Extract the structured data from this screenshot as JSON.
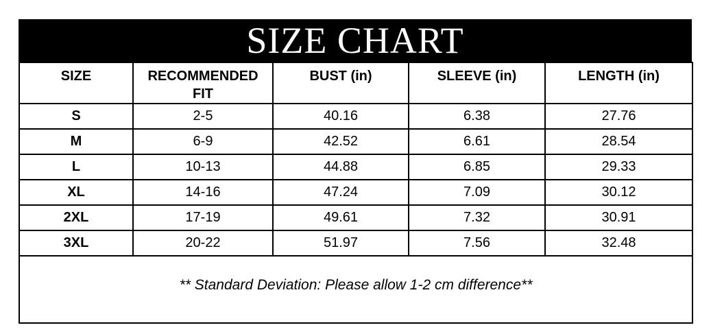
{
  "banner": {
    "title": "SIZE CHART",
    "background_color": "#000000",
    "text_color": "#ffffff"
  },
  "chart_data": {
    "type": "table",
    "title": "SIZE CHART",
    "columns": [
      "SIZE",
      "RECOMMENDED FIT",
      "BUST (in)",
      "SLEEVE (in)",
      "LENGTH (in)"
    ],
    "rows": [
      [
        "S",
        "2-5",
        "40.16",
        "6.38",
        "27.76"
      ],
      [
        "M",
        "6-9",
        "42.52",
        "6.61",
        "28.54"
      ],
      [
        "L",
        "10-13",
        "44.88",
        "6.85",
        "29.33"
      ],
      [
        "XL",
        "14-16",
        "47.24",
        "7.09",
        "30.12"
      ],
      [
        "2XL",
        "17-19",
        "49.61",
        "7.32",
        "30.91"
      ],
      [
        "3XL",
        "20-22",
        "51.97",
        "7.56",
        "32.48"
      ]
    ],
    "units": "in",
    "footnote": "** Standard Deviation: Please allow 1-2 cm difference**",
    "layout": {
      "grid": true,
      "border_color": "#000000",
      "header_style": "bold",
      "first_column_style": "bold",
      "footnote_style": "italic"
    }
  }
}
